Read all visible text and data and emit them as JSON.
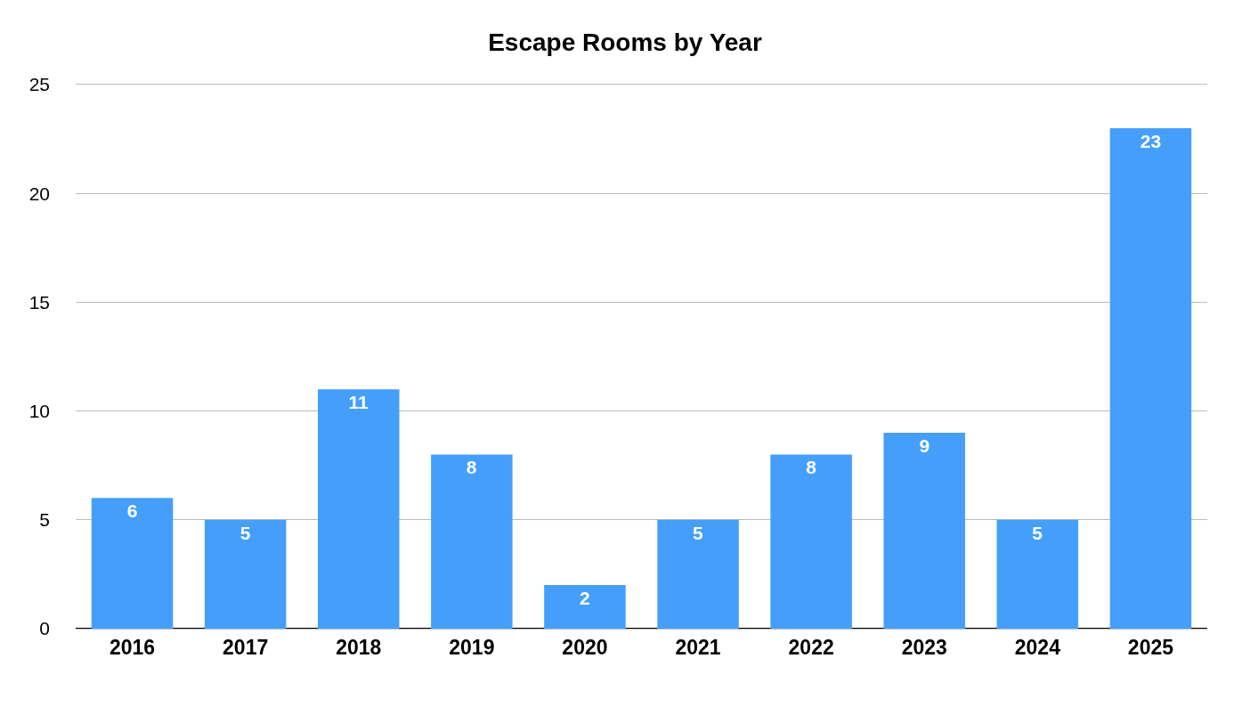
{
  "chart_data": {
    "type": "bar",
    "title": "Escape Rooms by Year",
    "categories": [
      "2016",
      "2017",
      "2018",
      "2019",
      "2020",
      "2021",
      "2022",
      "2023",
      "2024",
      "2025"
    ],
    "values": [
      6,
      5,
      11,
      8,
      2,
      5,
      8,
      9,
      5,
      23
    ],
    "color": "#459ffa",
    "ylim": [
      0,
      25
    ],
    "yticks": [
      0,
      5,
      10,
      15,
      20,
      25
    ],
    "grid": "y",
    "data_labels": true
  }
}
